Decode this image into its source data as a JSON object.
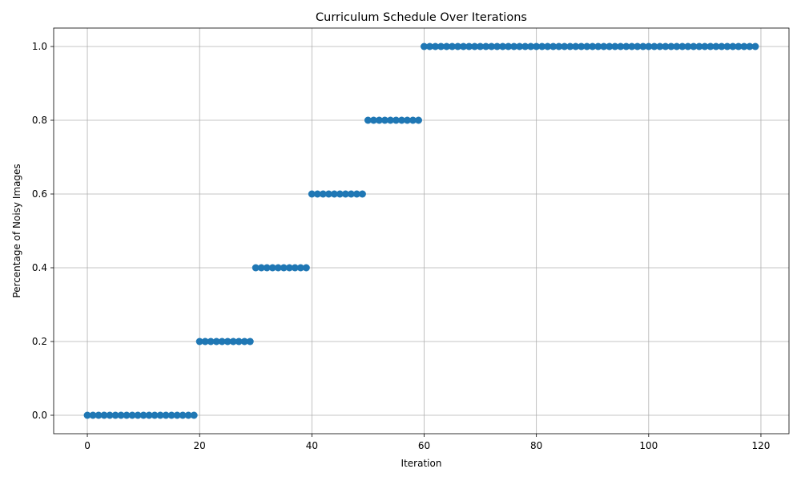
{
  "chart_data": {
    "type": "scatter",
    "title": "Curriculum Schedule Over Iterations",
    "xlabel": "Iteration",
    "ylabel": "Percentage of Noisy Images",
    "xlim": [
      -6,
      125
    ],
    "ylim": [
      -0.05,
      1.05
    ],
    "xticks": [
      0,
      20,
      40,
      60,
      80,
      100,
      120
    ],
    "yticks": [
      0.0,
      0.2,
      0.4,
      0.6,
      0.8,
      1.0
    ],
    "grid": true,
    "marker_color": "#1f77b4",
    "series": [
      {
        "segments": [
          {
            "x_start": 0,
            "x_end": 19,
            "y": 0.0
          },
          {
            "x_start": 20,
            "x_end": 29,
            "y": 0.2
          },
          {
            "x_start": 30,
            "x_end": 39,
            "y": 0.4
          },
          {
            "x_start": 40,
            "x_end": 49,
            "y": 0.6
          },
          {
            "x_start": 50,
            "x_end": 59,
            "y": 0.8
          },
          {
            "x_start": 60,
            "x_end": 119,
            "y": 1.0
          }
        ]
      }
    ]
  }
}
